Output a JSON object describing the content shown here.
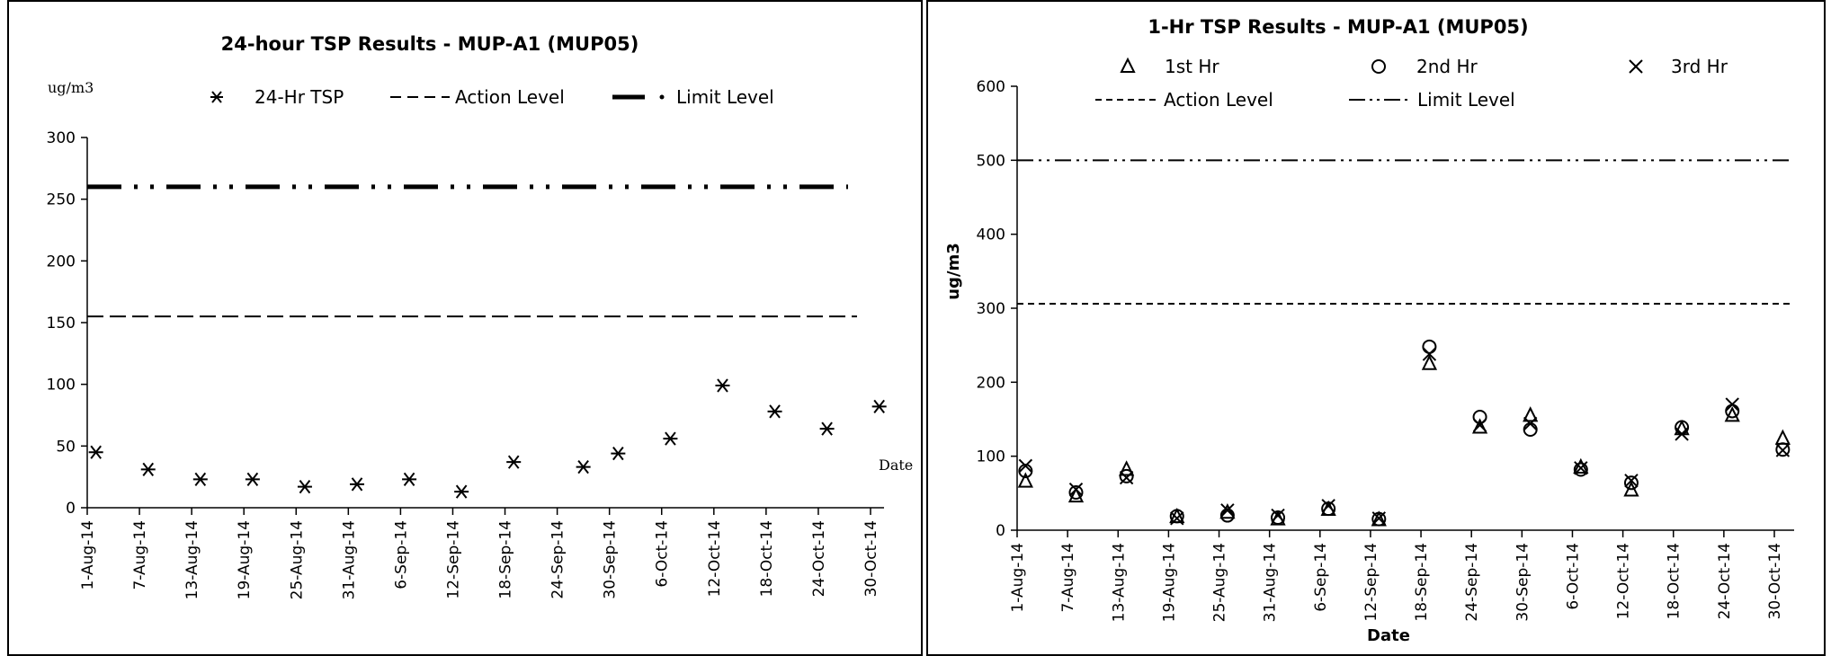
{
  "chart_data": [
    {
      "type": "scatter",
      "title": "24-hour TSP Results - MUP-A1 (MUP05)",
      "ylabel": "ug/m3",
      "xlabel": "Date",
      "ylim": [
        0,
        300
      ],
      "yticks": [
        "0",
        "50",
        "100",
        "150",
        "200",
        "250",
        "300"
      ],
      "xticks": [
        "1-Aug-14",
        "7-Aug-14",
        "13-Aug-14",
        "19-Aug-14",
        "25-Aug-14",
        "31-Aug-14",
        "6-Sep-14",
        "12-Sep-14",
        "18-Sep-14",
        "24-Sep-14",
        "30-Sep-14",
        "6-Oct-14",
        "12-Oct-14",
        "18-Oct-14",
        "24-Oct-14",
        "30-Oct-14"
      ],
      "legend": [
        "24-Hr TSP",
        "Action Level",
        "Limit Level"
      ],
      "legend_position": "top",
      "series": [
        {
          "name": "24-Hr TSP",
          "x": [
            "2-Aug-14",
            "8-Aug-14",
            "14-Aug-14",
            "20-Aug-14",
            "26-Aug-14",
            "1-Sep-14",
            "7-Sep-14",
            "13-Sep-14",
            "19-Sep-14",
            "27-Sep-14",
            "1-Oct-14",
            "7-Oct-14",
            "13-Oct-14",
            "19-Oct-14",
            "25-Oct-14",
            "31-Oct-14"
          ],
          "y": [
            45,
            31,
            23,
            23,
            17,
            19,
            23,
            13,
            37,
            33,
            44,
            56,
            99,
            78,
            64,
            82
          ]
        }
      ],
      "action_level": 155,
      "limit_level": 260
    },
    {
      "type": "scatter",
      "title": "1-Hr TSP Results - MUP-A1 (MUP05)",
      "ylabel": "ug/m3",
      "xlabel": "Date",
      "ylim": [
        0,
        600
      ],
      "yticks": [
        "0",
        "100",
        "200",
        "300",
        "400",
        "500",
        "600"
      ],
      "xticks": [
        "1-Aug-14",
        "7-Aug-14",
        "13-Aug-14",
        "19-Aug-14",
        "25-Aug-14",
        "31-Aug-14",
        "6-Sep-14",
        "12-Sep-14",
        "18-Sep-14",
        "24-Sep-14",
        "30-Sep-14",
        "6-Oct-14",
        "12-Oct-14",
        "18-Oct-14",
        "24-Oct-14",
        "30-Oct-14"
      ],
      "legend": [
        "1st Hr",
        "2nd Hr",
        "3rd Hr",
        "Action Level",
        "Limit Level"
      ],
      "legend_position": "top",
      "x": [
        "2-Aug-14",
        "8-Aug-14",
        "14-Aug-14",
        "20-Aug-14",
        "26-Aug-14",
        "1-Sep-14",
        "7-Sep-14",
        "13-Sep-14",
        "19-Sep-14",
        "25-Sep-14",
        "1-Oct-14",
        "7-Oct-14",
        "13-Oct-14",
        "19-Oct-14",
        "25-Oct-14",
        "31-Oct-14"
      ],
      "series": [
        {
          "name": "1st Hr",
          "y": [
            66,
            46,
            82,
            18,
            24,
            15,
            28,
            14,
            225,
            139,
            155,
            85,
            54,
            137,
            155,
            124
          ]
        },
        {
          "name": "2nd Hr",
          "y": [
            80,
            51,
            73,
            19,
            20,
            17,
            29,
            15,
            248,
            153,
            136,
            82,
            64,
            139,
            161,
            109
          ]
        },
        {
          "name": "3rd Hr",
          "y": [
            87,
            55,
            71,
            16,
            27,
            20,
            33,
            16,
            238,
            142,
            144,
            84,
            67,
            130,
            170,
            108
          ]
        }
      ],
      "action_level": 306,
      "limit_level": 500
    }
  ]
}
